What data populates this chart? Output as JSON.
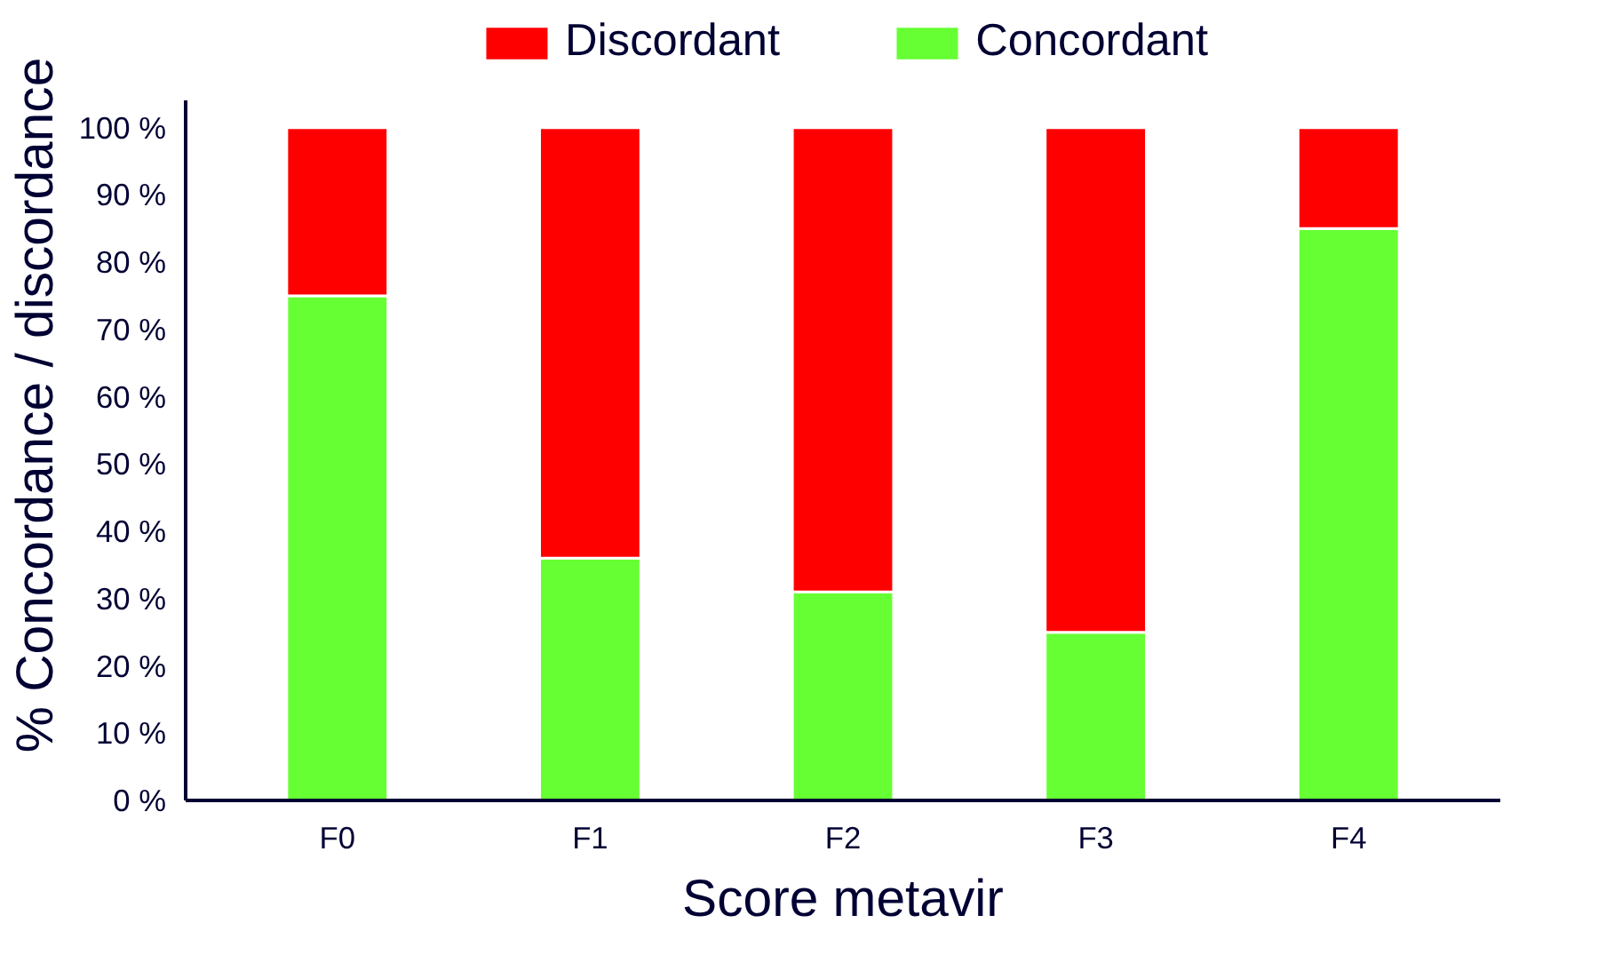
{
  "chart_data": {
    "type": "bar",
    "stacked": true,
    "xlabel": "Score metavir",
    "ylabel": "% Concordance / discordance",
    "categories": [
      "F0",
      "F1",
      "F2",
      "F3",
      "F4"
    ],
    "series": [
      {
        "name": "Concordant",
        "color": "#66ff33",
        "values": [
          75,
          36,
          31,
          25,
          85
        ]
      },
      {
        "name": "Discordant",
        "color": "#ff0000",
        "values": [
          25,
          64,
          69,
          75,
          15
        ]
      }
    ],
    "ylim": [
      0,
      104
    ],
    "yticks": [
      {
        "value": 0,
        "label": "0 %"
      },
      {
        "value": 10,
        "label": "10 %"
      },
      {
        "value": 20,
        "label": "20 %"
      },
      {
        "value": 30,
        "label": "30 %"
      },
      {
        "value": 40,
        "label": "40 %"
      },
      {
        "value": 50,
        "label": "50 %"
      },
      {
        "value": 60,
        "label": "60 %"
      },
      {
        "value": 70,
        "label": "70 %"
      },
      {
        "value": 80,
        "label": "80 %"
      },
      {
        "value": 90,
        "label": "90 %"
      },
      {
        "value": 100,
        "label": "100 %"
      }
    ],
    "grid": false,
    "legend": "top"
  }
}
